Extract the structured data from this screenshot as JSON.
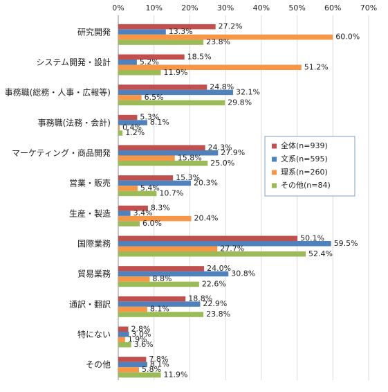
{
  "chart_data": {
    "type": "bar",
    "orientation": "horizontal",
    "categories": [
      "研究開発",
      "システム開発・設計",
      "事務職(総務・人事・広報等)",
      "事務職(法務・会計)",
      "マーケティング・商品開発",
      "営業・販売",
      "生産・製造",
      "国際業務",
      "貿易業務",
      "通訳・翻訳",
      "特にない",
      "その他"
    ],
    "series": [
      {
        "name": "全体(n=939)",
        "color": "#c0504d",
        "values": [
          27.2,
          18.5,
          24.8,
          5.3,
          24.3,
          15.3,
          8.3,
          50.1,
          24.0,
          18.8,
          2.8,
          7.8
        ],
        "value_labels": [
          "27.2%",
          "18.5%",
          "24.8%",
          "5.3%",
          "24.3%",
          "15.3%",
          "8.3%",
          "50.1%",
          "24.0%",
          "18.8%",
          "2.8%",
          "7.8%"
        ]
      },
      {
        "name": "文系(n=595)",
        "color": "#4f81bd",
        "values": [
          13.3,
          5.2,
          32.1,
          8.1,
          27.9,
          20.3,
          3.4,
          59.5,
          30.8,
          22.9,
          3.0,
          8.1
        ],
        "value_labels": [
          "13.3%",
          "5.2%",
          "32.1%",
          "8.1%",
          "27.9%",
          "20.3%",
          "3.4%",
          "59.5%",
          "30.8%",
          "22.9%",
          "3.0%",
          "8.1%"
        ]
      },
      {
        "name": "理系(n=260)",
        "color": "#f79646",
        "values": [
          60.0,
          51.2,
          6.5,
          0.4,
          15.8,
          5.4,
          20.4,
          27.7,
          8.8,
          8.1,
          1.9,
          5.8
        ],
        "value_labels": [
          "60.0%",
          "51.2%",
          "6.5%",
          "0.4%",
          "15.8%",
          "5.4%",
          "20.4%",
          "27.7%",
          "8.8%",
          "8.1%",
          "1.9%",
          "5.8%"
        ]
      },
      {
        "name": "その他(n=84)",
        "color": "#9bbb59",
        "values": [
          23.8,
          11.9,
          29.8,
          1.2,
          25.0,
          10.7,
          6.0,
          52.4,
          22.6,
          23.8,
          3.6,
          11.9
        ],
        "value_labels": [
          "23.8%",
          "11.9%",
          "29.8%",
          "1.2%",
          "25.0%",
          "10.7%",
          "6.0%",
          "52.4%",
          "22.6%",
          "23.8%",
          "3.6%",
          "11.9%"
        ]
      }
    ],
    "xlim": [
      0,
      70
    ],
    "xticks": [
      {
        "value": 0,
        "label": "0%"
      },
      {
        "value": 10,
        "label": "10%"
      },
      {
        "value": 20,
        "label": "20%"
      },
      {
        "value": 30,
        "label": "30%"
      },
      {
        "value": 40,
        "label": "40%"
      },
      {
        "value": 50,
        "label": "50%"
      },
      {
        "value": 60,
        "label": "60%"
      },
      {
        "value": 70,
        "label": "70%"
      }
    ],
    "grid": true,
    "legend_position": "right"
  }
}
